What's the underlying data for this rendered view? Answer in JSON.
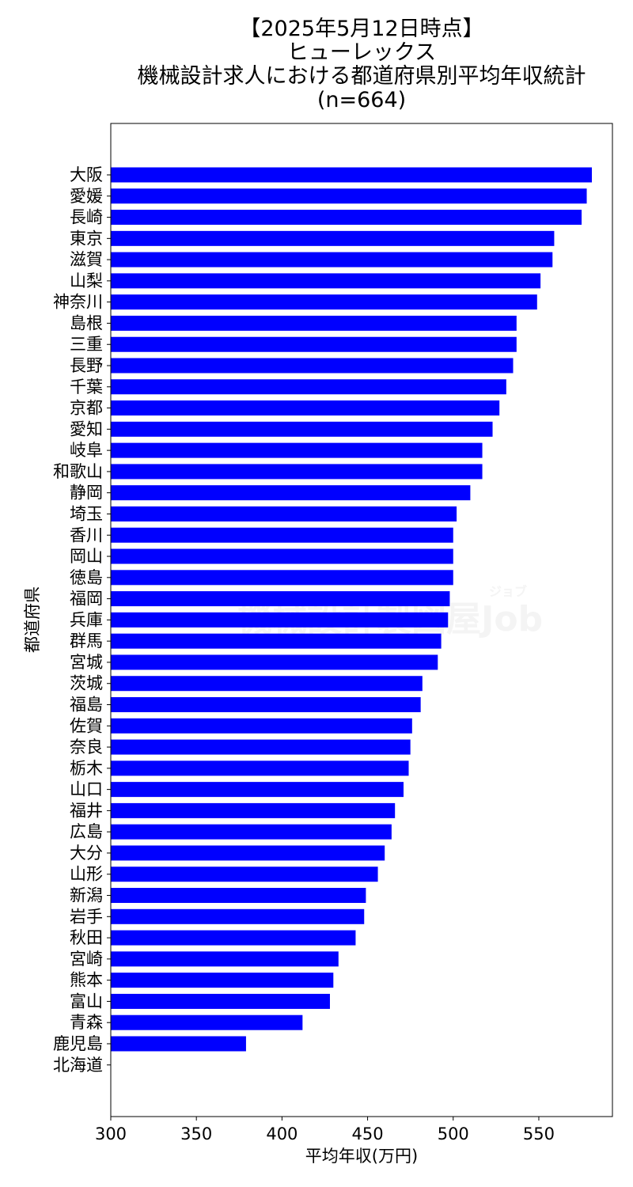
{
  "chart_data": {
    "type": "bar",
    "orientation": "horizontal",
    "title_lines": [
      "【2025年5月12日時点】",
      "ヒューレックス",
      "機械設計求人における都道府県別平均年収統計",
      "(n=664)"
    ],
    "xlabel": "平均年収(万円)",
    "ylabel": "都道府県",
    "xlim": [
      300,
      593
    ],
    "xticks": [
      300,
      350,
      400,
      450,
      500,
      550
    ],
    "bar_color": "#0000ff",
    "grid": false,
    "watermark": {
      "main": "機械設計製図屋Job",
      "small": "ジョブ"
    },
    "categories": [
      "大阪",
      "愛媛",
      "長崎",
      "東京",
      "滋賀",
      "山梨",
      "神奈川",
      "島根",
      "三重",
      "長野",
      "千葉",
      "京都",
      "愛知",
      "岐阜",
      "和歌山",
      "静岡",
      "埼玉",
      "香川",
      "岡山",
      "徳島",
      "福岡",
      "兵庫",
      "群馬",
      "宮城",
      "茨城",
      "福島",
      "佐賀",
      "奈良",
      "栃木",
      "山口",
      "福井",
      "広島",
      "大分",
      "山形",
      "新潟",
      "岩手",
      "秋田",
      "宮崎",
      "熊本",
      "富山",
      "青森",
      "鹿児島",
      "北海道"
    ],
    "values": [
      581,
      578,
      575,
      559,
      558,
      551,
      549,
      537,
      537,
      535,
      531,
      527,
      523,
      517,
      517,
      510,
      502,
      500,
      500,
      500,
      498,
      497,
      493,
      491,
      482,
      481,
      476,
      475,
      474,
      471,
      466,
      464,
      460,
      456,
      449,
      448,
      443,
      433,
      430,
      428,
      412,
      379,
      null
    ]
  }
}
